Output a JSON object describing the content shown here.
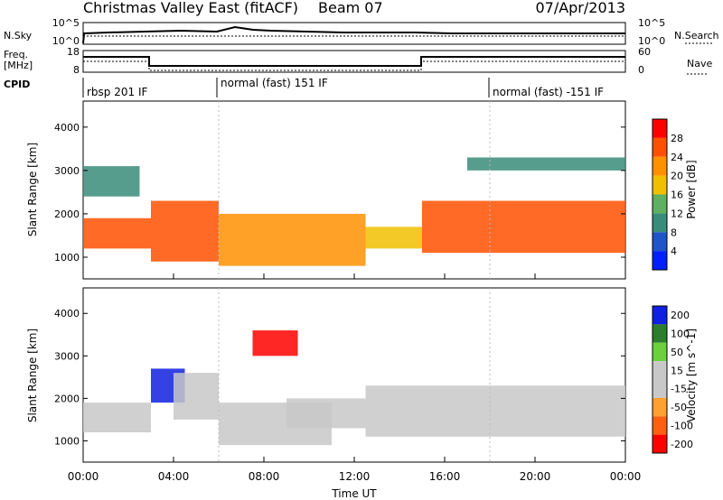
{
  "header": {
    "station": "Christmas Valley East (fitACF)",
    "beam": "Beam 07",
    "date": "07/Apr/2013"
  },
  "panels": {
    "nsky": {
      "label": "N.Sky",
      "y_ticks": [
        "10^5",
        "10^0"
      ]
    },
    "nsearch": {
      "label": "N.Search",
      "y_ticks": [
        "10^5",
        "10^0"
      ]
    },
    "freq": {
      "label_top": "Freq.",
      "label_bottom": "[MHz]",
      "y_ticks": [
        "18",
        "8"
      ]
    },
    "nave": {
      "label": "Nave",
      "y_ticks": [
        "60",
        "0"
      ]
    },
    "cpid": {
      "label": "CPID",
      "segments": [
        "rbsp 201 IF",
        "normal (fast) 151 IF",
        "normal (fast) -151 IF"
      ]
    }
  },
  "colors": {
    "power_scale": [
      "#0020ff",
      "#1f55c8",
      "#3a8c7a",
      "#5fb060",
      "#f0c000",
      "#ff9000",
      "#ff5000",
      "#ff0000"
    ],
    "velocity_scale": [
      "#1020e0",
      "#2c7e2c",
      "#6bd03c",
      "#c8c8c8",
      "#c8c8c8",
      "#ffa030",
      "#ff6010",
      "#ff0000"
    ]
  },
  "chart_data": [
    {
      "type": "heatmap",
      "title": "Power",
      "xlabel": "",
      "ylabel": "Slant Range [km]",
      "xlim": [
        "00:00",
        "24:00"
      ],
      "ylim": [
        500,
        4600
      ],
      "x_ticks": [
        "00:00",
        "04:00",
        "08:00",
        "12:00",
        "16:00",
        "20:00",
        "00:00"
      ],
      "y_ticks": [
        "1000",
        "2000",
        "3000",
        "4000"
      ],
      "colorbar": {
        "label": "Power [dB]",
        "ticks": [
          "28",
          "24",
          "20",
          "16",
          "12",
          "8",
          "4"
        ],
        "range": [
          0,
          30
        ]
      },
      "bands": [
        {
          "t0": 0.0,
          "t1": 3.0,
          "r0": 1200,
          "r1": 1900,
          "value": 26
        },
        {
          "t0": 0.0,
          "t1": 2.5,
          "r0": 2400,
          "r1": 3100,
          "value": 10
        },
        {
          "t0": 3.0,
          "t1": 6.0,
          "r0": 900,
          "r1": 2300,
          "value": 24
        },
        {
          "t0": 6.0,
          "t1": 12.5,
          "r0": 800,
          "r1": 2000,
          "value": 22
        },
        {
          "t0": 12.5,
          "t1": 15.0,
          "r0": 1200,
          "r1": 1700,
          "value": 18
        },
        {
          "t0": 15.0,
          "t1": 24.0,
          "r0": 1100,
          "r1": 2300,
          "value": 24
        },
        {
          "t0": 17.0,
          "t1": 24.0,
          "r0": 3000,
          "r1": 3300,
          "value": 8
        }
      ]
    },
    {
      "type": "heatmap",
      "title": "Velocity",
      "xlabel": "Time UT",
      "ylabel": "Slant Range [km]",
      "xlim": [
        "00:00",
        "24:00"
      ],
      "ylim": [
        500,
        4600
      ],
      "x_ticks": [
        "00:00",
        "04:00",
        "08:00",
        "12:00",
        "16:00",
        "20:00",
        "00:00"
      ],
      "y_ticks": [
        "1000",
        "2000",
        "3000",
        "4000"
      ],
      "colorbar": {
        "label": "Velocity [m s^-1]",
        "ticks": [
          "200",
          "100",
          "50",
          "15",
          "-15",
          "-50",
          "-100",
          "-200"
        ],
        "range": [
          -250,
          250
        ]
      },
      "bands": [
        {
          "t0": 0.0,
          "t1": 3.0,
          "r0": 1200,
          "r1": 1900,
          "value": 0
        },
        {
          "t0": 3.0,
          "t1": 4.5,
          "r0": 1900,
          "r1": 2700,
          "value": 220
        },
        {
          "t0": 4.0,
          "t1": 6.0,
          "r0": 1500,
          "r1": 2600,
          "value": -60
        },
        {
          "t0": 6.0,
          "t1": 11.0,
          "r0": 900,
          "r1": 1900,
          "value": 40
        },
        {
          "t0": 9.0,
          "t1": 12.5,
          "r0": 1300,
          "r1": 2000,
          "value": -60
        },
        {
          "t0": 7.5,
          "t1": 9.5,
          "r0": 3000,
          "r1": 3600,
          "value": -210
        },
        {
          "t0": 12.5,
          "t1": 24.0,
          "r0": 1100,
          "r1": 2300,
          "value": 0
        }
      ]
    }
  ]
}
